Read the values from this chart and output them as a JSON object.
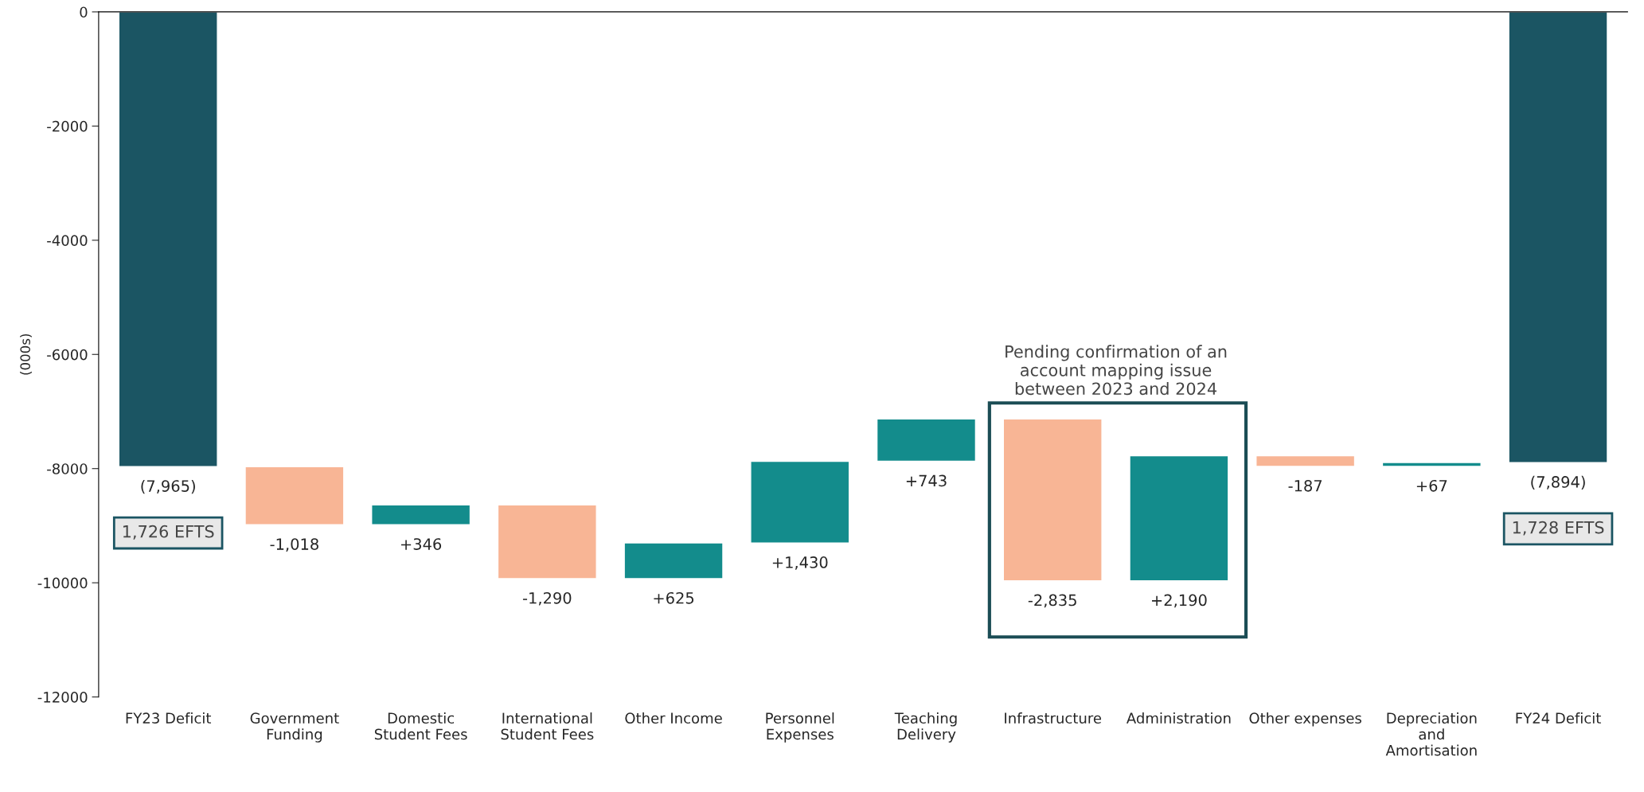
{
  "chart_data": {
    "type": "bar",
    "ylabel": "(000s)",
    "categories": [
      "FY23 Deficit",
      "Government\nFunding",
      "Domestic\nStudent Fees",
      "International\nStudent Fees",
      "Other Income",
      "Personnel\nExpenses",
      "Teaching\nDelivery",
      "Infrastructure",
      "Administration",
      "Other expenses",
      "Depreciation\nand\nAmortisation",
      "FY24 Deficit"
    ],
    "base": [
      0,
      -7965,
      -8983,
      -8637,
      -9927,
      -9302,
      -7872,
      -7129,
      -9964,
      -7774,
      -7961,
      0
    ],
    "values": [
      -7965,
      -1018,
      346,
      -1290,
      625,
      1430,
      743,
      -2835,
      2190,
      -187,
      67,
      -7894
    ],
    "colors": [
      "#1b5563",
      "#f8b595",
      "#138c8c",
      "#f8b595",
      "#138c8c",
      "#138c8c",
      "#138c8c",
      "#f8b595",
      "#138c8c",
      "#f8b595",
      "#138c8c",
      "#1b5563"
    ],
    "value_labels": [
      "(7,965)",
      "-1,018",
      "+346",
      "-1,290",
      "+625",
      "+1,430",
      "+743",
      "-2,835",
      "+2,190",
      "-187",
      "+67",
      "(7,894)"
    ],
    "ylim": [
      -12000,
      0
    ],
    "yticks": [
      0,
      -2000,
      -4000,
      -6000,
      -8000,
      -10000,
      -12000
    ],
    "grid": false,
    "legend": false,
    "annotations": [
      "1,726 EFTS",
      "1,728 EFTS",
      "Pending confirmation of an\naccount mapping issue\nbetween 2023 and 2024"
    ]
  }
}
